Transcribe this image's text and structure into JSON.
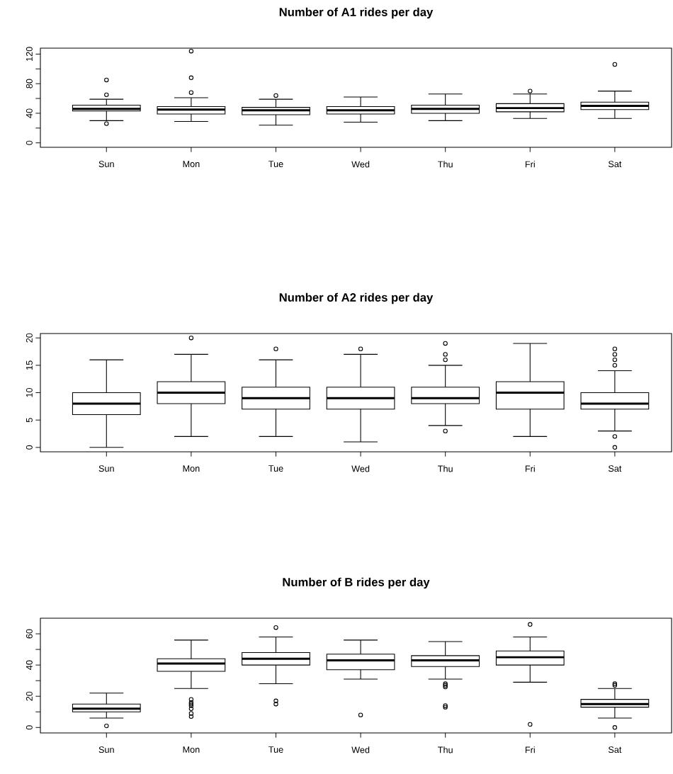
{
  "chart_data": [
    {
      "type": "box",
      "title": "Number of A1 rides per day",
      "categories": [
        "Sun",
        "Mon",
        "Tue",
        "Wed",
        "Thu",
        "Fri",
        "Sat"
      ],
      "boxes": [
        {
          "low": 30,
          "q1": 43,
          "median": 46,
          "q3": 51,
          "high": 59,
          "outliers": [
            26,
            65,
            85
          ]
        },
        {
          "low": 29,
          "q1": 39,
          "median": 45,
          "q3": 49,
          "high": 61,
          "outliers": [
            68,
            88,
            124
          ]
        },
        {
          "low": 24,
          "q1": 38,
          "median": 44,
          "q3": 48,
          "high": 59,
          "outliers": [
            64
          ]
        },
        {
          "low": 28,
          "q1": 39,
          "median": 44,
          "q3": 49,
          "high": 62
        },
        {
          "low": 30,
          "q1": 40,
          "median": 46,
          "q3": 51,
          "high": 66
        },
        {
          "low": 33,
          "q1": 42,
          "median": 47,
          "q3": 53,
          "high": 66,
          "outliers": [
            70
          ]
        },
        {
          "low": 33,
          "q1": 45,
          "median": 50,
          "q3": 55,
          "high": 70,
          "outliers": [
            106
          ]
        }
      ],
      "ylim": [
        -6,
        128
      ],
      "yticks": [
        0,
        {
          "value": 20,
          "label": null
        },
        40,
        {
          "value": 60,
          "label": null
        },
        80,
        {
          "value": 100,
          "label": null
        },
        120
      ]
    },
    {
      "type": "box",
      "title": "Number of A2 rides per day",
      "categories": [
        "Sun",
        "Mon",
        "Tue",
        "Wed",
        "Thu",
        "Fri",
        "Sat"
      ],
      "boxes": [
        {
          "low": 0,
          "q1": 6,
          "median": 8,
          "q3": 10,
          "high": 16
        },
        {
          "low": 2,
          "q1": 8,
          "median": 10,
          "q3": 12,
          "high": 17,
          "outliers": [
            20
          ]
        },
        {
          "low": 2,
          "q1": 7,
          "median": 9,
          "q3": 11,
          "high": 16,
          "outliers": [
            18
          ]
        },
        {
          "low": 1,
          "q1": 7,
          "median": 9,
          "q3": 11,
          "high": 17,
          "outliers": [
            18
          ]
        },
        {
          "low": 4,
          "q1": 8,
          "median": 9,
          "q3": 11,
          "high": 15,
          "outliers": [
            3,
            16,
            17,
            19
          ]
        },
        {
          "low": 2,
          "q1": 7,
          "median": 10,
          "q3": 12,
          "high": 19
        },
        {
          "low": 3,
          "q1": 7,
          "median": 8,
          "q3": 10,
          "high": 14,
          "outliers": [
            0,
            2,
            15,
            16,
            17,
            18
          ]
        }
      ],
      "ylim": [
        -0.8,
        20.8
      ],
      "yticks": [
        0,
        5,
        10,
        15,
        20
      ]
    },
    {
      "type": "box",
      "title": "Number of B rides per day",
      "categories": [
        "Sun",
        "Mon",
        "Tue",
        "Wed",
        "Thu",
        "Fri",
        "Sat"
      ],
      "boxes": [
        {
          "low": 6,
          "q1": 10,
          "median": 12,
          "q3": 15,
          "high": 22,
          "outliers": [
            1
          ]
        },
        {
          "low": 25,
          "q1": 36,
          "median": 41,
          "q3": 44,
          "high": 56,
          "outliers": [
            7,
            9,
            12,
            14,
            15,
            16,
            18
          ]
        },
        {
          "low": 28,
          "q1": 40,
          "median": 44,
          "q3": 48,
          "high": 58,
          "outliers": [
            15,
            17,
            64
          ]
        },
        {
          "low": 31,
          "q1": 37,
          "median": 43,
          "q3": 47,
          "high": 56,
          "outliers": [
            8
          ]
        },
        {
          "low": 31,
          "q1": 39,
          "median": 43,
          "q3": 46,
          "high": 55,
          "outliers": [
            13,
            14,
            26,
            27,
            28
          ]
        },
        {
          "low": 29,
          "q1": 40,
          "median": 45,
          "q3": 49,
          "high": 58,
          "outliers": [
            2,
            66
          ]
        },
        {
          "low": 6,
          "q1": 13,
          "median": 15,
          "q3": 18,
          "high": 25,
          "outliers": [
            0,
            27,
            28
          ]
        }
      ],
      "ylim": [
        -3.5,
        70
      ],
      "yticks": [
        0,
        {
          "value": 10,
          "label": null
        },
        20,
        {
          "value": 30,
          "label": null
        },
        40,
        {
          "value": 50,
          "label": null
        },
        60
      ]
    }
  ]
}
